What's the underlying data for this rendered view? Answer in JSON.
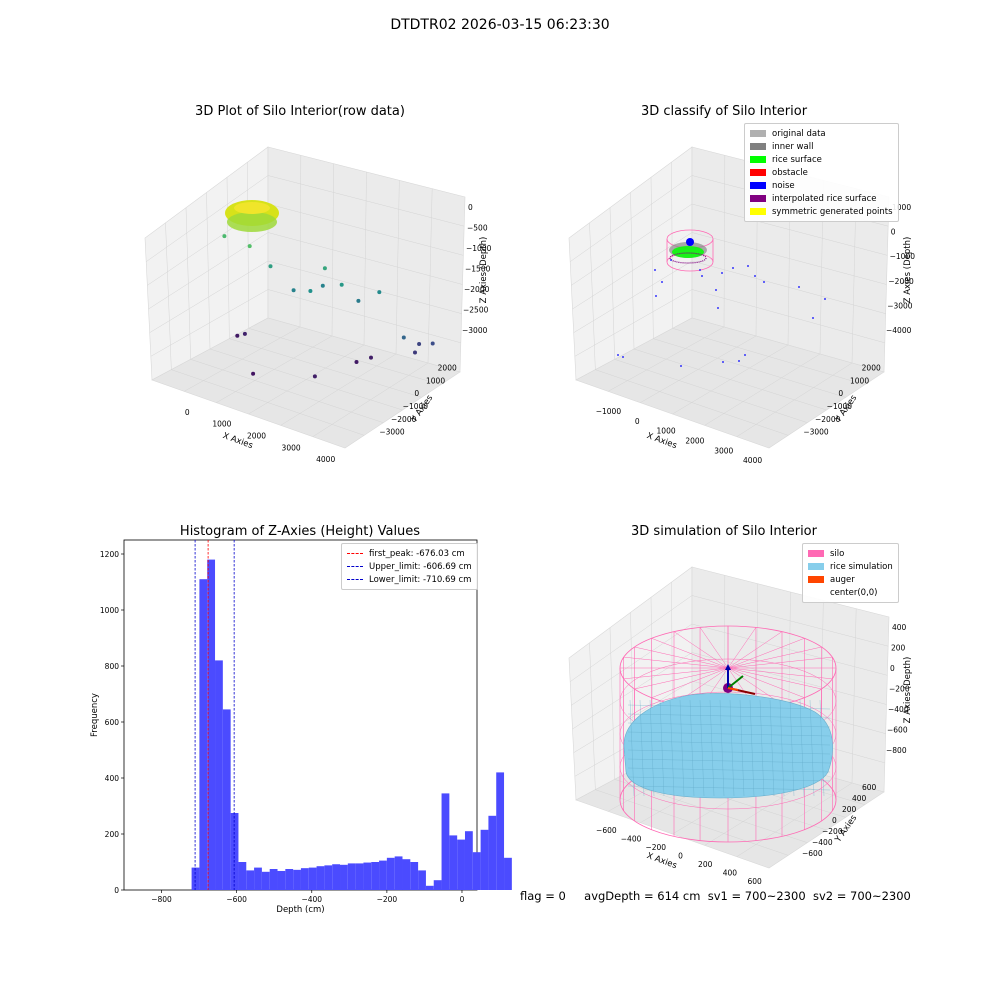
{
  "figure_title": "DTDTR02 2026-03-15 06:23:30",
  "footer": {
    "flag": "flag = 0",
    "avg_depth": "avgDepth = 614 cm",
    "sv1": "sv1 = 700~2300",
    "sv2": "sv2 = 700~2300"
  },
  "colors": {
    "hist_bar": "#4b4bff",
    "peak_line": "#ff0000",
    "limit_line": "#0000cc",
    "silo": "#ff69b4",
    "rice": "#87ceeb",
    "auger": "#ff4500"
  },
  "chart_data": [
    {
      "type": "scatter",
      "title": "3D Plot of Silo Interior(row data)",
      "xlabel": "X Axies",
      "ylabel": "Y Axies",
      "zlabel": "Z Axies (Depth)",
      "x_ticks": [
        "0",
        "1000",
        "2000",
        "3000",
        "4000"
      ],
      "y_ticks": [
        "2000",
        "1000",
        "0",
        "−1000",
        "−2000",
        "−3000"
      ],
      "z_ticks": [
        "0",
        "−500",
        "−1000",
        "−1500",
        "−2000",
        "−2500",
        "−3000"
      ],
      "xlim": [
        -600,
        4000
      ],
      "ylim": [
        -3300,
        2300
      ],
      "zlim": [
        -3300,
        100
      ],
      "colormap": "viridis",
      "points": [
        {
          "x": -270,
          "y": 150,
          "z": -3050
        },
        {
          "x": -90,
          "y": 150,
          "z": -2950
        },
        {
          "x": 920,
          "y": -1500,
          "z": -3100
        },
        {
          "x": 2000,
          "y": -700,
          "z": -3000
        },
        {
          "x": 2150,
          "y": 1000,
          "z": -3050
        },
        {
          "x": 2300,
          "y": 1400,
          "z": -3000
        },
        {
          "x": 3180,
          "y": 1200,
          "z": -2200
        },
        {
          "x": 3100,
          "y": 2100,
          "z": -2600
        },
        {
          "x": 3150,
          "y": 1800,
          "z": -2700
        },
        {
          "x": 3400,
          "y": 2150,
          "z": -2500
        },
        {
          "x": -700,
          "y": 400,
          "z": -1000
        },
        {
          "x": 50,
          "y": 100,
          "z": -900
        },
        {
          "x": 300,
          "y": 600,
          "z": -1400
        },
        {
          "x": 800,
          "y": 700,
          "z": -1800
        },
        {
          "x": 1250,
          "y": 1300,
          "z": -1300
        },
        {
          "x": 1100,
          "y": 1500,
          "z": -1800
        },
        {
          "x": 1700,
          "y": 1200,
          "z": -1500
        },
        {
          "x": 1300,
          "y": 500,
          "z": -1600
        },
        {
          "x": 1900,
          "y": 1600,
          "z": -1900
        },
        {
          "x": 2200,
          "y": 2000,
          "z": -1700
        }
      ]
    },
    {
      "type": "scatter",
      "title": "3D classify of Silo Interior",
      "xlabel": "X Axies",
      "ylabel": "Y Axies",
      "zlabel": "Z Axies (Depth)",
      "x_ticks": [
        "−1000",
        "0",
        "1000",
        "2000",
        "3000",
        "4000"
      ],
      "y_ticks": [
        "2000",
        "1000",
        "0",
        "−1000",
        "−2000",
        "−3000"
      ],
      "z_ticks": [
        "1000",
        "0",
        "−1000",
        "−2000",
        "−3000",
        "−4000"
      ],
      "legend": [
        "original data",
        "inner wall",
        "rice surface",
        "obstacle",
        "noise",
        "interpolated rice surface",
        "symmetric generated points"
      ],
      "legend_colors": [
        "#b0b0b0",
        "#808080",
        "#00ff00",
        "#ff0000",
        "#0000ff",
        "#800080",
        "#ffff00"
      ],
      "legend_position": "upper-right"
    },
    {
      "type": "bar",
      "title": "Histogram of Z-Axies (Height) Values",
      "xlabel": "Depth (cm)",
      "ylabel": "Frequency",
      "xlim": [
        -900,
        40
      ],
      "ylim": [
        0,
        1250
      ],
      "x_ticks": [
        -800,
        -600,
        -400,
        -200,
        0
      ],
      "x_tick_labels": [
        "−800",
        "−600",
        "−400",
        "−200",
        "0"
      ],
      "y_ticks": [
        0,
        200,
        400,
        600,
        800,
        1000,
        1200
      ],
      "bin_start": -720,
      "bin_width": 20.8,
      "values": [
        80,
        1110,
        1180,
        820,
        645,
        275,
        100,
        70,
        80,
        65,
        75,
        68,
        75,
        72,
        78,
        80,
        85,
        88,
        92,
        90,
        95,
        95,
        98,
        100,
        105,
        115,
        120,
        110,
        100,
        70,
        15,
        35,
        345,
        195,
        180,
        210,
        135,
        215,
        265,
        420,
        115
      ],
      "vlines": [
        {
          "label": "first_peak: -676.03 cm",
          "x": -676.03,
          "style": "red-dashed"
        },
        {
          "label": "Upper_limit: -606.69 cm",
          "x": -606.69,
          "style": "blue-dashed"
        },
        {
          "label": "Lower_limit: -710.69 cm",
          "x": -710.69,
          "style": "blue-dashed"
        }
      ],
      "legend_position": "upper-right"
    },
    {
      "type": "area",
      "title": "3D simulation of Silo Interior",
      "xlabel": "X Axies",
      "ylabel": "Y Axies",
      "zlabel": "Z Axies (Depth)",
      "x_ticks": [
        "−600",
        "−400",
        "−200",
        "0",
        "200",
        "400",
        "600"
      ],
      "y_ticks": [
        "600",
        "400",
        "200",
        "0",
        "−200",
        "−400",
        "−600"
      ],
      "z_ticks": [
        "400",
        "200",
        "0",
        "−200",
        "−400",
        "−600",
        "−800"
      ],
      "legend": [
        "silo",
        "rice simulation",
        "auger",
        "center(0,0)"
      ],
      "legend_colors": [
        "#ff69b4",
        "#87ceeb",
        "#ff4500",
        "#ffffff"
      ],
      "legend_position": "upper-right"
    }
  ]
}
